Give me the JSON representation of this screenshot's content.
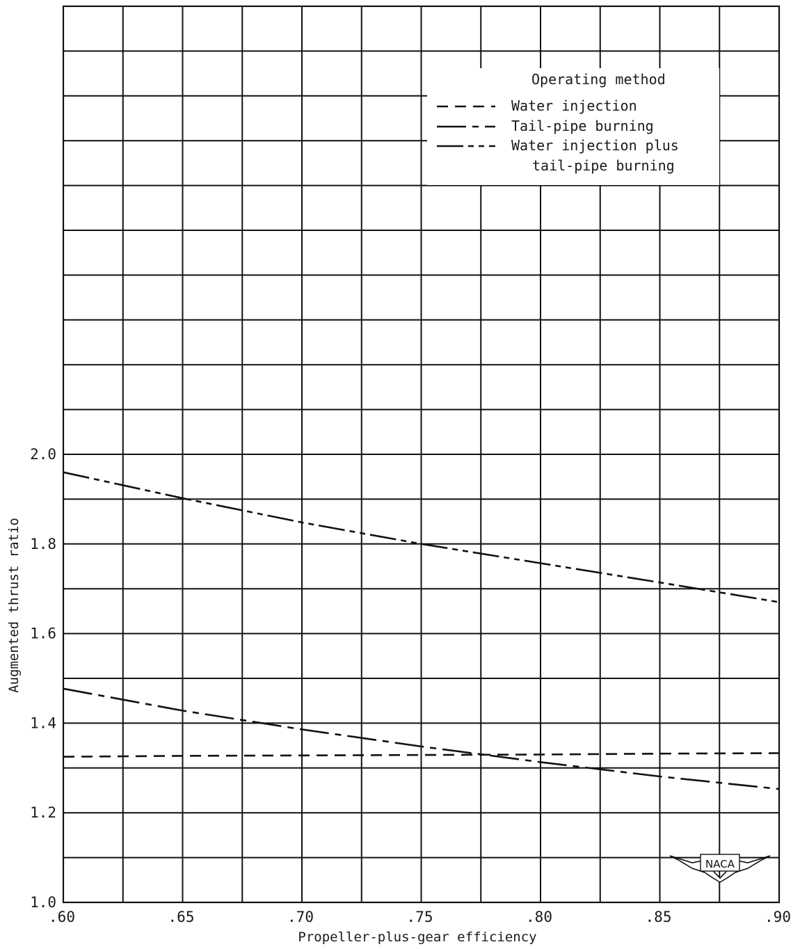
{
  "chart_data": {
    "type": "line",
    "title": "",
    "xlabel": "Propeller-plus-gear efficiency",
    "ylabel": "Augmented thrust ratio",
    "xlim": [
      0.6,
      0.9
    ],
    "ylim": [
      1.0,
      3.0
    ],
    "grid": true,
    "x_ticks": [
      0.6,
      0.65,
      0.7,
      0.75,
      0.8,
      0.85,
      0.9
    ],
    "x_tick_labels": [
      ".60",
      ".65",
      ".70",
      ".75",
      ".80",
      ".85",
      ".90"
    ],
    "y_ticks": [
      1.0,
      1.2,
      1.4,
      1.6,
      1.8,
      2.0
    ],
    "y_tick_labels": [
      "1.0",
      "1.2",
      "1.4",
      "1.6",
      "1.8",
      "2.0"
    ],
    "legend": {
      "title": "Operating method",
      "placement": "top-right",
      "entries": [
        {
          "label_lines": [
            "Water injection"
          ],
          "dash": "short"
        },
        {
          "label_lines": [
            "Tail-pipe burning"
          ],
          "dash": "long-short"
        },
        {
          "label_lines": [
            "Water injection plus",
            "tail-pipe burning"
          ],
          "dash": "long-short-short"
        }
      ]
    },
    "series": [
      {
        "dash": "short",
        "x": [
          0.6,
          0.65,
          0.7,
          0.75,
          0.8,
          0.85,
          0.9
        ],
        "y": [
          1.325,
          1.327,
          1.328,
          1.329,
          1.33,
          1.332,
          1.333
        ]
      },
      {
        "dash": "long-short",
        "x": [
          0.6,
          0.65,
          0.7,
          0.75,
          0.8,
          0.85,
          0.9
        ],
        "y": [
          1.477,
          1.428,
          1.386,
          1.348,
          1.313,
          1.281,
          1.253
        ]
      },
      {
        "dash": "long-short-short",
        "x": [
          0.6,
          0.65,
          0.7,
          0.75,
          0.8,
          0.85,
          0.9
        ],
        "y": [
          1.96,
          1.902,
          1.848,
          1.8,
          1.757,
          1.714,
          1.67
        ]
      }
    ]
  },
  "logo": {
    "text": "NACA"
  }
}
